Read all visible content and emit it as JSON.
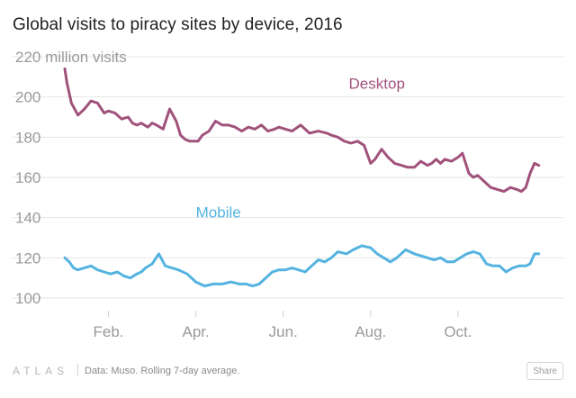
{
  "header": {
    "title": "Global visits to piracy sites by device, 2016"
  },
  "chart_data": {
    "type": "line",
    "title": "Global visits to piracy sites by device, 2016",
    "ylabel": "million visits",
    "y_unit_label": "220 million visits",
    "ylim": [
      95,
      222
    ],
    "y_ticks": [
      100,
      120,
      140,
      160,
      180,
      200,
      220
    ],
    "xlim": [
      0,
      11
    ],
    "x_ticks": [
      {
        "label": "Feb.",
        "x": 1
      },
      {
        "label": "Apr.",
        "x": 3
      },
      {
        "label": "Jun.",
        "x": 5
      },
      {
        "label": "Aug.",
        "x": 7
      },
      {
        "label": "Oct.",
        "x": 9
      }
    ],
    "grid": true,
    "legend": "inline labels",
    "series": [
      {
        "name": "Desktop",
        "color": "#a0527b",
        "label_pos": [
          6.5,
          204
        ],
        "x": [
          0,
          0.05,
          0.15,
          0.3,
          0.45,
          0.6,
          0.75,
          0.9,
          1.0,
          1.15,
          1.3,
          1.45,
          1.55,
          1.65,
          1.75,
          1.82,
          1.9,
          2.0,
          2.1,
          2.25,
          2.4,
          2.55,
          2.65,
          2.75,
          2.85,
          2.95,
          3.05,
          3.15,
          3.3,
          3.45,
          3.6,
          3.75,
          3.9,
          4.05,
          4.2,
          4.35,
          4.5,
          4.65,
          4.8,
          4.9,
          5.05,
          5.2,
          5.4,
          5.6,
          5.8,
          6.0,
          6.1,
          6.25,
          6.4,
          6.55,
          6.7,
          6.85,
          7.0,
          7.1,
          7.25,
          7.4,
          7.55,
          7.7,
          7.85,
          8.0,
          8.15,
          8.3,
          8.4,
          8.5,
          8.6,
          8.7,
          8.85,
          9.0,
          9.1,
          9.25,
          9.35,
          9.45,
          9.6,
          9.75,
          9.9,
          10.05,
          10.2,
          10.35,
          10.45,
          10.55,
          10.65,
          10.75,
          10.85
        ],
        "values": [
          214,
          207,
          197,
          191,
          194,
          198,
          197,
          192,
          193,
          192,
          189,
          190,
          187,
          186,
          187,
          186,
          185,
          187,
          186,
          184,
          194,
          188,
          181,
          179,
          178,
          178,
          178,
          181,
          183,
          188,
          186,
          186,
          185,
          183,
          185,
          184,
          186,
          183,
          184,
          185,
          184,
          183,
          186,
          182,
          183,
          182,
          181,
          180,
          178,
          177,
          178,
          176,
          167,
          169,
          174,
          170,
          167,
          166,
          165,
          165,
          168,
          166,
          167,
          169,
          167,
          169,
          168,
          170,
          172,
          162,
          160,
          161,
          158,
          155,
          154,
          153,
          155,
          154,
          153,
          155,
          162,
          167,
          166
        ]
      },
      {
        "name": "Mobile",
        "color": "#54b3e0",
        "label_pos": [
          3.0,
          140
        ],
        "x": [
          0,
          0.1,
          0.2,
          0.3,
          0.45,
          0.6,
          0.75,
          0.9,
          1.05,
          1.2,
          1.35,
          1.5,
          1.65,
          1.75,
          1.85,
          2.0,
          2.15,
          2.3,
          2.45,
          2.6,
          2.8,
          3.0,
          3.2,
          3.4,
          3.6,
          3.8,
          4.0,
          4.15,
          4.3,
          4.45,
          4.6,
          4.75,
          4.9,
          5.05,
          5.2,
          5.35,
          5.5,
          5.65,
          5.8,
          5.95,
          6.1,
          6.25,
          6.45,
          6.6,
          6.8,
          7.0,
          7.15,
          7.3,
          7.45,
          7.6,
          7.8,
          8.0,
          8.15,
          8.3,
          8.45,
          8.6,
          8.75,
          8.9,
          9.05,
          9.2,
          9.35,
          9.5,
          9.65,
          9.8,
          9.95,
          10.1,
          10.25,
          10.4,
          10.55,
          10.65,
          10.75,
          10.85
        ],
        "values": [
          120,
          118,
          115,
          114,
          115,
          116,
          114,
          113,
          112,
          113,
          111,
          110,
          112,
          113,
          115,
          117,
          122,
          116,
          115,
          114,
          112,
          108,
          106,
          107,
          107,
          108,
          107,
          107,
          106,
          107,
          110,
          113,
          114,
          114,
          115,
          114,
          113,
          116,
          119,
          118,
          120,
          123,
          122,
          124,
          126,
          125,
          122,
          120,
          118,
          120,
          124,
          122,
          121,
          120,
          119,
          120,
          118,
          118,
          120,
          122,
          123,
          122,
          117,
          116,
          116,
          113,
          115,
          116,
          116,
          117,
          122,
          122
        ]
      }
    ]
  },
  "footer": {
    "logo": "ATLAS",
    "source": "Data:  Muso. Rolling 7-day average.",
    "share_label": "Share"
  }
}
